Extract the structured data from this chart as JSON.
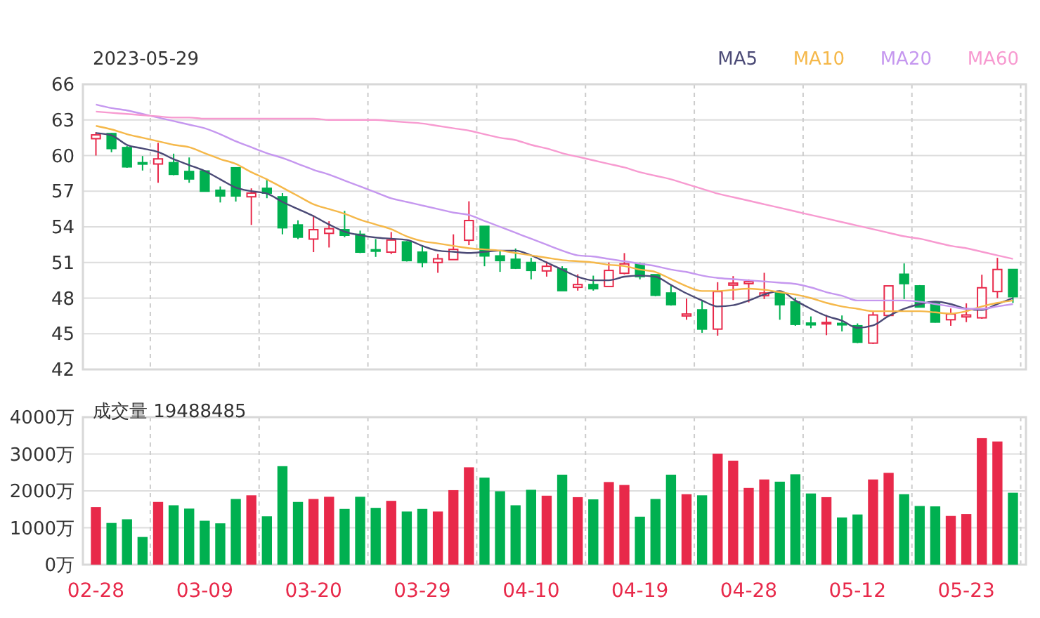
{
  "chart_data": [
    {
      "type": "candlestick",
      "title": "2023-05-29",
      "categories": [
        null,
        null,
        null,
        null,
        null,
        null,
        null,
        null,
        null,
        null,
        null,
        null,
        null,
        null,
        null,
        null,
        null,
        null,
        null,
        null,
        null,
        null,
        null,
        null,
        null,
        null,
        null,
        null,
        null,
        null,
        null,
        null,
        null,
        null,
        null,
        null,
        null,
        null,
        null,
        null,
        null,
        null,
        null,
        null,
        null,
        null,
        null,
        null,
        null,
        null,
        null,
        null,
        null,
        null,
        null,
        null,
        null,
        null,
        null,
        null
      ],
      "ohlc": [
        [
          61.42,
          61.97,
          60.0,
          61.74
        ],
        [
          61.85,
          61.9,
          60.28,
          60.59
        ],
        [
          60.67,
          60.8,
          58.97,
          59.05
        ],
        [
          59.4,
          59.96,
          58.74,
          59.3
        ],
        [
          59.29,
          61.07,
          57.71,
          59.72
        ],
        [
          59.4,
          60.16,
          58.34,
          58.42
        ],
        [
          58.66,
          59.84,
          57.71,
          58.03
        ],
        [
          58.7,
          58.78,
          57.0,
          57.0
        ],
        [
          57.08,
          57.4,
          56.05,
          56.6
        ],
        [
          58.97,
          59.0,
          56.13,
          56.6
        ],
        [
          56.53,
          57.24,
          54.16,
          56.84
        ],
        [
          57.24,
          57.95,
          56.41,
          56.84
        ],
        [
          56.53,
          56.84,
          53.37,
          53.92
        ],
        [
          54.16,
          54.55,
          52.97,
          53.13
        ],
        [
          52.97,
          54.97,
          51.87,
          53.76
        ],
        [
          53.45,
          54.47,
          52.26,
          53.84
        ],
        [
          53.76,
          55.34,
          53.13,
          53.29
        ],
        [
          53.37,
          53.68,
          51.79,
          51.87
        ],
        [
          52.07,
          52.97,
          51.47,
          51.95
        ],
        [
          51.87,
          53.56,
          51.71,
          52.89
        ],
        [
          52.73,
          52.8,
          51.08,
          51.16
        ],
        [
          51.87,
          52.46,
          50.6,
          51.0
        ],
        [
          51.0,
          51.71,
          50.13,
          51.31
        ],
        [
          51.24,
          53.37,
          51.24,
          52.1
        ],
        [
          52.87,
          56.15,
          52.46,
          54.53
        ],
        [
          54.04,
          54.04,
          50.68,
          51.55
        ],
        [
          51.55,
          51.98,
          50.21,
          51.16
        ],
        [
          51.27,
          52.18,
          50.45,
          50.52
        ],
        [
          51.0,
          51.39,
          49.58,
          50.33
        ],
        [
          50.29,
          51.08,
          49.81,
          50.68
        ],
        [
          50.45,
          50.68,
          48.63,
          48.63
        ],
        [
          48.91,
          50.0,
          48.63,
          49.14
        ],
        [
          49.14,
          49.89,
          48.63,
          48.79
        ],
        [
          48.98,
          51.0,
          48.98,
          50.33
        ],
        [
          50.09,
          51.79,
          50.0,
          50.88
        ],
        [
          50.88,
          51.0,
          49.58,
          49.81
        ],
        [
          49.97,
          49.97,
          48.16,
          48.24
        ],
        [
          48.43,
          49.14,
          47.37,
          47.45
        ],
        [
          46.5,
          47.96,
          46.18,
          46.66
        ],
        [
          47.01,
          47.84,
          45.08,
          45.39
        ],
        [
          45.39,
          49.34,
          44.84,
          48.55
        ],
        [
          49.1,
          49.85,
          47.84,
          49.26
        ],
        [
          49.22,
          49.58,
          47.64,
          49.38
        ],
        [
          48.2,
          50.13,
          47.92,
          48.43
        ],
        [
          48.43,
          48.43,
          46.18,
          47.45
        ],
        [
          47.68,
          48.04,
          45.67,
          45.79
        ],
        [
          45.9,
          46.46,
          45.47,
          45.75
        ],
        [
          45.83,
          46.58,
          44.88,
          45.95
        ],
        [
          45.87,
          46.54,
          45.2,
          45.75
        ],
        [
          45.67,
          45.87,
          44.21,
          44.29
        ],
        [
          44.21,
          46.85,
          44.13,
          46.58
        ],
        [
          46.54,
          49.03,
          46.46,
          49.03
        ],
        [
          50.01,
          50.92,
          47.92,
          49.22
        ],
        [
          49.03,
          49.1,
          47.21,
          47.25
        ],
        [
          47.64,
          47.64,
          45.94,
          45.98
        ],
        [
          46.18,
          47.13,
          45.67,
          46.66
        ],
        [
          46.42,
          47.56,
          45.98,
          46.58
        ],
        [
          46.34,
          49.97,
          46.26,
          48.87
        ],
        [
          48.55,
          51.39,
          48.0,
          50.41
        ],
        [
          50.41,
          50.41,
          47.6,
          48.12
        ]
      ],
      "series": [
        {
          "type": "line",
          "name": "MA5",
          "color": "#4b4a76",
          "values": [
            61.9,
            61.7,
            60.9,
            60.6,
            60.3,
            59.7,
            59.2,
            58.7,
            58.0,
            57.3,
            57.0,
            56.8,
            56.1,
            55.5,
            54.9,
            54.2,
            53.6,
            53.3,
            53.1,
            53.0,
            52.9,
            52.4,
            52.0,
            51.9,
            51.8,
            51.9,
            52.0,
            52.0,
            51.6,
            51.0,
            50.4,
            49.8,
            49.5,
            49.5,
            49.8,
            49.9,
            49.8,
            49.1,
            48.4,
            47.8,
            47.3,
            47.4,
            47.8,
            48.3,
            48.6,
            47.8,
            47.1,
            46.5,
            46.1,
            45.5,
            45.7,
            46.5,
            47.1,
            47.5,
            47.7,
            47.5,
            47.1,
            47.0,
            47.5,
            48.0
          ]
        },
        {
          "type": "line",
          "name": "MA10",
          "color": "#f5b84a",
          "values": [
            62.5,
            62.2,
            61.8,
            61.5,
            61.2,
            60.9,
            60.7,
            60.2,
            59.7,
            59.3,
            58.6,
            58.0,
            57.3,
            56.6,
            55.9,
            55.5,
            55.1,
            54.6,
            54.2,
            53.8,
            53.2,
            52.8,
            52.6,
            52.4,
            52.2,
            52.1,
            52.0,
            51.8,
            51.6,
            51.4,
            51.2,
            51.1,
            51.0,
            50.8,
            50.7,
            50.4,
            50.2,
            49.6,
            49.0,
            48.6,
            48.6,
            48.7,
            48.8,
            48.7,
            48.5,
            48.3,
            48.0,
            47.6,
            47.3,
            47.1,
            46.9,
            46.9,
            46.9,
            46.9,
            46.8,
            46.7,
            46.9,
            47.3,
            47.6,
            47.8
          ]
        },
        {
          "type": "line",
          "name": "MA20",
          "color": "#c597ef",
          "values": [
            64.3,
            64.0,
            63.8,
            63.5,
            63.2,
            62.9,
            62.6,
            62.3,
            61.8,
            61.2,
            60.7,
            60.2,
            59.8,
            59.3,
            58.8,
            58.4,
            57.9,
            57.4,
            56.9,
            56.4,
            56.1,
            55.8,
            55.5,
            55.2,
            55.0,
            54.5,
            54.0,
            53.5,
            53.0,
            52.5,
            52.0,
            51.6,
            51.5,
            51.3,
            51.1,
            50.9,
            50.7,
            50.4,
            50.2,
            49.9,
            49.7,
            49.6,
            49.5,
            49.4,
            49.3,
            49.2,
            48.9,
            48.5,
            48.2,
            47.8,
            47.8,
            47.8,
            47.8,
            47.7,
            47.5,
            47.3,
            47.1,
            47.1,
            47.3,
            47.5
          ]
        },
        {
          "type": "line",
          "name": "MA60",
          "color": "#f79ad0",
          "values": [
            63.7,
            63.6,
            63.5,
            63.4,
            63.3,
            63.2,
            63.2,
            63.1,
            63.1,
            63.1,
            63.1,
            63.1,
            63.1,
            63.1,
            63.1,
            63.0,
            63.0,
            63.0,
            63.0,
            62.9,
            62.8,
            62.7,
            62.5,
            62.3,
            62.1,
            61.8,
            61.5,
            61.3,
            60.9,
            60.6,
            60.2,
            59.9,
            59.6,
            59.3,
            59.0,
            58.6,
            58.3,
            58.0,
            57.6,
            57.2,
            56.8,
            56.5,
            56.2,
            55.9,
            55.6,
            55.3,
            55.0,
            54.7,
            54.4,
            54.1,
            53.8,
            53.5,
            53.2,
            53.0,
            52.7,
            52.4,
            52.2,
            51.9,
            51.6,
            51.3
          ]
        }
      ],
      "ylim": [
        42,
        66
      ],
      "yticks": [
        42,
        45,
        48,
        51,
        54,
        57,
        60,
        63,
        66
      ],
      "grid": true,
      "legend": "top right",
      "tick_labels": "y"
    },
    {
      "type": "bar",
      "title": "成交量 19488485",
      "categories": [
        "02-28",
        null,
        null,
        null,
        null,
        null,
        null,
        "03-09",
        null,
        null,
        null,
        null,
        null,
        null,
        "03-20",
        null,
        null,
        null,
        null,
        null,
        null,
        "03-29",
        null,
        null,
        null,
        null,
        null,
        null,
        "04-10",
        null,
        null,
        null,
        null,
        null,
        null,
        "04-19",
        null,
        null,
        null,
        null,
        null,
        null,
        "04-28",
        null,
        null,
        null,
        null,
        null,
        null,
        "05-12",
        null,
        null,
        null,
        null,
        null,
        null,
        "05-23",
        null,
        null,
        null
      ],
      "values": [
        1560,
        1130,
        1230,
        750,
        1700,
        1610,
        1520,
        1190,
        1120,
        1780,
        1880,
        1310,
        2670,
        1700,
        1780,
        1840,
        1510,
        1840,
        1540,
        1730,
        1440,
        1510,
        1440,
        2020,
        2640,
        2360,
        1990,
        1610,
        2030,
        1870,
        2440,
        1830,
        1770,
        2240,
        2160,
        1300,
        1780,
        2440,
        1910,
        1880,
        3010,
        2820,
        2080,
        2310,
        2250,
        2450,
        1930,
        1830,
        1280,
        1360,
        2310,
        2490,
        1910,
        1590,
        1580,
        1320,
        1370,
        3430,
        3340,
        1950
      ],
      "colors": [
        "#e8294a",
        "#00b050",
        "#00b050",
        "#00b050",
        "#e8294a",
        "#00b050",
        "#00b050",
        "#00b050",
        "#00b050",
        "#00b050",
        "#e8294a",
        "#00b050",
        "#00b050",
        "#00b050",
        "#e8294a",
        "#e8294a",
        "#00b050",
        "#00b050",
        "#00b050",
        "#e8294a",
        "#00b050",
        "#00b050",
        "#e8294a",
        "#e8294a",
        "#e8294a",
        "#00b050",
        "#00b050",
        "#00b050",
        "#00b050",
        "#e8294a",
        "#00b050",
        "#e8294a",
        "#00b050",
        "#e8294a",
        "#e8294a",
        "#00b050",
        "#00b050",
        "#00b050",
        "#e8294a",
        "#00b050",
        "#e8294a",
        "#e8294a",
        "#e8294a",
        "#e8294a",
        "#00b050",
        "#00b050",
        "#00b050",
        "#e8294a",
        "#00b050",
        "#00b050",
        "#e8294a",
        "#e8294a",
        "#00b050",
        "#00b050",
        "#00b050",
        "#e8294a",
        "#e8294a",
        "#e8294a",
        "#e8294a",
        "#00b050"
      ],
      "ylim": [
        0,
        4000
      ],
      "yticks": [
        {
          "value": 0,
          "label": "0万"
        },
        {
          "value": 1000,
          "label": "1000万"
        },
        {
          "value": 2000,
          "label": "2000万"
        },
        {
          "value": 3000,
          "label": "3000万"
        },
        {
          "value": 4000,
          "label": "4000万"
        }
      ],
      "grid": true
    }
  ]
}
